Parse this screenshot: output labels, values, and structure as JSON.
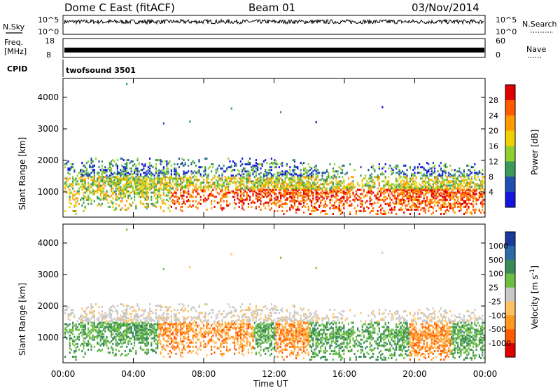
{
  "header": {
    "title": "Dome C East (fitACF)",
    "beam": "Beam 01",
    "date": "03/Nov/2014"
  },
  "status_panels": {
    "nsky_label": "N.Sky",
    "nsearch_label": "N.Search",
    "noise_ticks_left": [
      "10^5",
      "10^0"
    ],
    "noise_ticks_right": [
      "10^5",
      "10^0"
    ],
    "freq_label_top": "Freq.",
    "freq_label_unit": "[MHz]",
    "freq_ticks": [
      "18",
      "8"
    ],
    "nave_label": "Nave",
    "nave_ticks": [
      "60",
      "0"
    ],
    "cpid_label": "CPID",
    "cpid_value": "twofsound 3501"
  },
  "chart_data": [
    {
      "type": "heatmap",
      "ylabel": "Slant Range [km]",
      "ylim": [
        200,
        4600
      ],
      "yticks": [
        "4000",
        "3000",
        "2000",
        "1000"
      ],
      "colorbar_label": "Power [dB]",
      "colorbar_ticks": [
        "28",
        "24",
        "20",
        "16",
        "12",
        "8",
        "4"
      ],
      "colorbar_colors": [
        "#e00000",
        "#ff5a00",
        "#ff9a00",
        "#f0d000",
        "#90d030",
        "#3a9a5a",
        "#1f4fb0",
        "#1515e0"
      ]
    },
    {
      "type": "heatmap",
      "ylabel": "Slant Range [km]",
      "ylim": [
        200,
        4600
      ],
      "yticks": [
        "4000",
        "3000",
        "2000",
        "1000"
      ],
      "xticks": [
        "00:00",
        "04:00",
        "08:00",
        "12:00",
        "16:00",
        "20:00",
        "00:00"
      ],
      "xlabel": "Time UT",
      "colorbar_label": "Velocity [m s^-1]",
      "colorbar_ticks": [
        "1000",
        "500",
        "100",
        "25",
        "-25",
        "-100",
        "-500",
        "-1000"
      ],
      "colorbar_colors": [
        "#1a3aa0",
        "#2a6aa8",
        "#3a8a5a",
        "#6cc040",
        "#c8c8c8",
        "#ffc060",
        "#ff9a20",
        "#ff5a00",
        "#e00000"
      ]
    }
  ]
}
